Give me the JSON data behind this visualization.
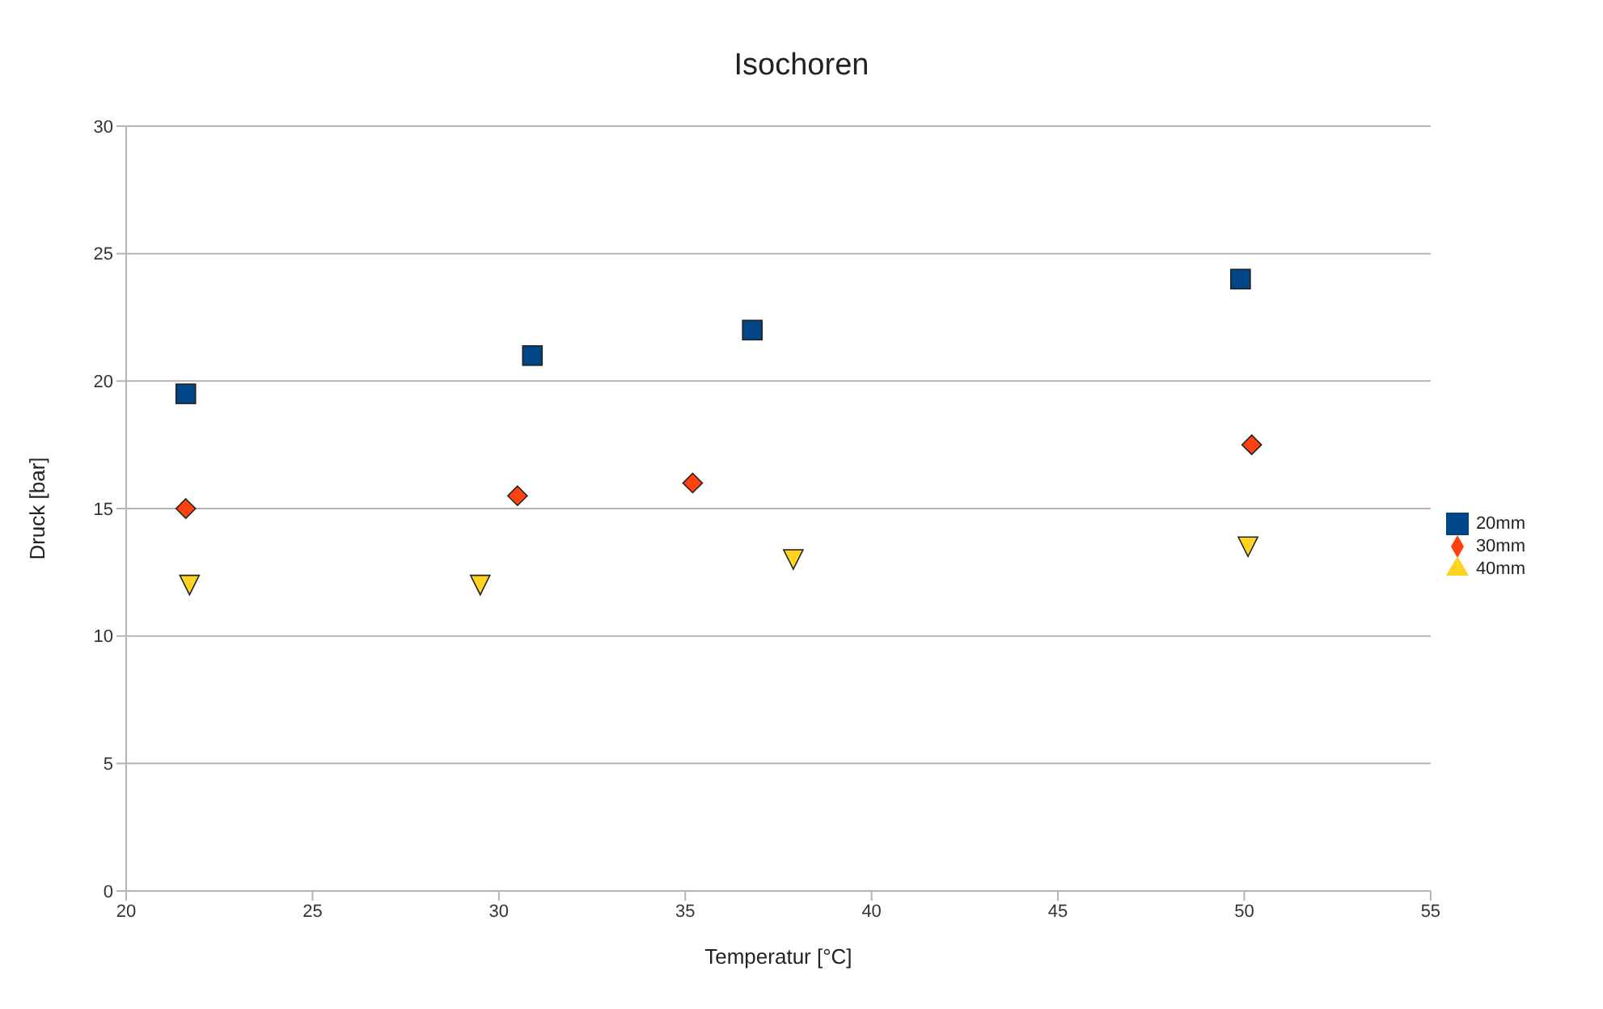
{
  "chart_data": {
    "type": "scatter",
    "title": "Isochoren",
    "xlabel": "Temperatur [°C]",
    "ylabel": "Druck [bar]",
    "xlim": [
      20,
      55
    ],
    "xticks": [
      20,
      25,
      30,
      35,
      40,
      45,
      50,
      55
    ],
    "ylim": [
      0,
      30
    ],
    "yticks": [
      0,
      5,
      10,
      15,
      20,
      25,
      30
    ],
    "grid": "y",
    "legend": "right",
    "series": [
      {
        "name": "20mm",
        "color": "#004586",
        "marker": "square",
        "x": [
          21.6,
          30.9,
          36.8,
          49.9
        ],
        "values": [
          19.5,
          21,
          22,
          24
        ]
      },
      {
        "name": "30mm",
        "color": "#ff420e",
        "marker": "diamond",
        "x": [
          21.6,
          30.5,
          35.2,
          50.2
        ],
        "values": [
          15,
          15.5,
          16,
          17.5
        ]
      },
      {
        "name": "40mm",
        "color": "#ffd320",
        "marker": "triangle",
        "x": [
          21.7,
          29.5,
          37.9,
          50.1
        ],
        "values": [
          12,
          12,
          13,
          13.5
        ]
      }
    ]
  }
}
